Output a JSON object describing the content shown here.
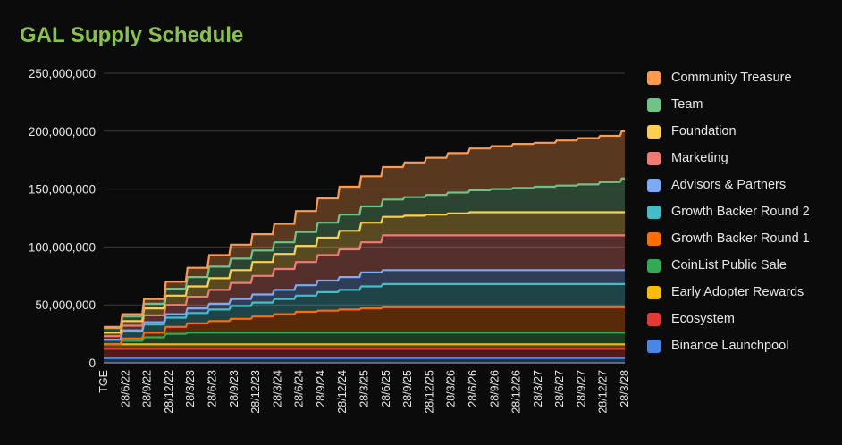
{
  "chart_data": {
    "type": "area",
    "stacked": true,
    "title": "GAL Supply Schedule",
    "xlabel": "",
    "ylabel": "",
    "ylim": [
      0,
      250000000
    ],
    "yticks": [
      0,
      50000000,
      100000000,
      150000000,
      200000000,
      250000000
    ],
    "ytick_labels": [
      "0",
      "50,000,000",
      "100,000,000",
      "150,000,000",
      "200,000,000",
      "250,000,000"
    ],
    "grid": "horizontal",
    "legend_position": "right",
    "x": [
      "TGE",
      "28/6/22",
      "28/9/22",
      "28/12/22",
      "28/3/23",
      "28/6/23",
      "28/9/23",
      "28/12/23",
      "28/3/24",
      "28/6/24",
      "28/9/24",
      "28/12/24",
      "28/3/25",
      "28/6/25",
      "28/9/25",
      "28/12/25",
      "28/3/26",
      "28/6/26",
      "28/9/26",
      "28/12/26",
      "28/3/27",
      "28/6/27",
      "28/9/27",
      "28/12/27",
      "28/3/28"
    ],
    "series": [
      {
        "name": "Binance Launchpool",
        "color": "#4a86e8",
        "values": [
          4000000,
          4000000,
          4000000,
          4000000,
          4000000,
          4000000,
          4000000,
          4000000,
          4000000,
          4000000,
          4000000,
          4000000,
          4000000,
          4000000,
          4000000,
          4000000,
          4000000,
          4000000,
          4000000,
          4000000,
          4000000,
          4000000,
          4000000,
          4000000,
          4000000
        ]
      },
      {
        "name": "Ecosystem",
        "color": "#e53935",
        "values": [
          8000000,
          8000000,
          8000000,
          8000000,
          8000000,
          8000000,
          8000000,
          8000000,
          8000000,
          8000000,
          8000000,
          8000000,
          8000000,
          8000000,
          8000000,
          8000000,
          8000000,
          8000000,
          8000000,
          8000000,
          8000000,
          8000000,
          8000000,
          8000000,
          8000000
        ]
      },
      {
        "name": "Early Adopter Rewards",
        "color": "#fbbc04",
        "values": [
          4000000,
          4000000,
          4000000,
          4000000,
          4000000,
          4000000,
          4000000,
          4000000,
          4000000,
          4000000,
          4000000,
          4000000,
          4000000,
          4000000,
          4000000,
          4000000,
          4000000,
          4000000,
          4000000,
          4000000,
          4000000,
          4000000,
          4000000,
          4000000,
          4000000
        ]
      },
      {
        "name": "CoinList Public Sale",
        "color": "#34a853",
        "values": [
          0,
          3000000,
          6000000,
          9000000,
          10000000,
          10000000,
          10000000,
          10000000,
          10000000,
          10000000,
          10000000,
          10000000,
          10000000,
          10000000,
          10000000,
          10000000,
          10000000,
          10000000,
          10000000,
          10000000,
          10000000,
          10000000,
          10000000,
          10000000,
          10000000
        ]
      },
      {
        "name": "Growth Backer Round 1",
        "color": "#ff6d01",
        "values": [
          0,
          2000000,
          4000000,
          6000000,
          8000000,
          10000000,
          12000000,
          14000000,
          16000000,
          18000000,
          19000000,
          20000000,
          21000000,
          22000000,
          22000000,
          22000000,
          22000000,
          22000000,
          22000000,
          22000000,
          22000000,
          22000000,
          22000000,
          22000000,
          22000000
        ]
      },
      {
        "name": "Growth Backer Round 2",
        "color": "#46bdc6",
        "values": [
          4000000,
          6000000,
          7000000,
          8000000,
          9000000,
          10000000,
          11000000,
          12000000,
          13000000,
          14000000,
          16000000,
          17000000,
          19000000,
          20000000,
          20000000,
          20000000,
          20000000,
          20000000,
          20000000,
          20000000,
          20000000,
          20000000,
          20000000,
          20000000,
          20000000
        ]
      },
      {
        "name": "Advisors & Partners",
        "color": "#7baaf7",
        "values": [
          0,
          1000000,
          2000000,
          3000000,
          4000000,
          5000000,
          6000000,
          7000000,
          8000000,
          9000000,
          10000000,
          11000000,
          12000000,
          12000000,
          12000000,
          12000000,
          12000000,
          12000000,
          12000000,
          12000000,
          12000000,
          12000000,
          12000000,
          12000000,
          12000000
        ]
      },
      {
        "name": "Marketing",
        "color": "#f07b72",
        "values": [
          3000000,
          4000000,
          6000000,
          8000000,
          10000000,
          12000000,
          14000000,
          16000000,
          18000000,
          20000000,
          22000000,
          24000000,
          26000000,
          30000000,
          30000000,
          30000000,
          30000000,
          30000000,
          30000000,
          30000000,
          30000000,
          30000000,
          30000000,
          30000000,
          30000000
        ]
      },
      {
        "name": "Foundation",
        "color": "#fcd04f",
        "values": [
          3000000,
          4000000,
          6000000,
          8000000,
          9000000,
          10000000,
          11000000,
          12000000,
          13000000,
          14000000,
          15000000,
          16000000,
          17000000,
          16000000,
          17000000,
          18000000,
          19000000,
          20000000,
          20000000,
          20000000,
          20000000,
          20000000,
          20000000,
          20000000,
          20000000
        ]
      },
      {
        "name": "Team",
        "color": "#71c287",
        "values": [
          4000000,
          4000000,
          4000000,
          6000000,
          8000000,
          10000000,
          10000000,
          10000000,
          10000000,
          12000000,
          13000000,
          14000000,
          14000000,
          15000000,
          16000000,
          17000000,
          18000000,
          19000000,
          20000000,
          21000000,
          22000000,
          23000000,
          24000000,
          26000000,
          29000000
        ]
      },
      {
        "name": "Community Treasure",
        "color": "#ff994d",
        "values": [
          1000000,
          2000000,
          4000000,
          6000000,
          8000000,
          10000000,
          12000000,
          14000000,
          16000000,
          18000000,
          21000000,
          24000000,
          26000000,
          28000000,
          30000000,
          32000000,
          34000000,
          36000000,
          37000000,
          38000000,
          38000000,
          39000000,
          40000000,
          40000000,
          41000000
        ]
      }
    ]
  }
}
